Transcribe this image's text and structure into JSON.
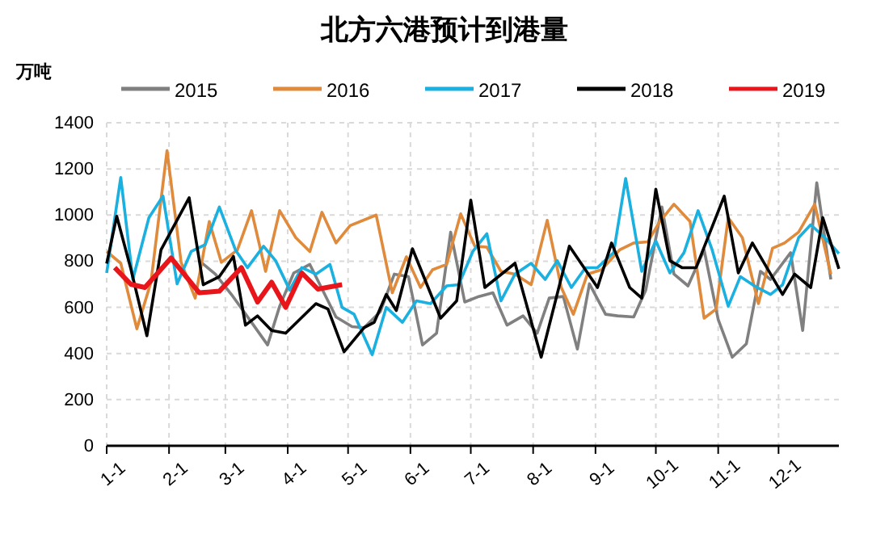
{
  "chart_data": {
    "type": "line",
    "title": "北方六港预计到港量",
    "ylabel": "万吨",
    "xlim": [
      "--01-01",
      "--12-31"
    ],
    "xticks": [
      {
        "value": "--01-01",
        "label": "1-1"
      },
      {
        "value": "--02-01",
        "label": "2-1"
      },
      {
        "value": "--03-01",
        "label": "3-1"
      },
      {
        "value": "--04-01",
        "label": "4-1"
      },
      {
        "value": "--05-01",
        "label": "5-1"
      },
      {
        "value": "--06-01",
        "label": "6-1"
      },
      {
        "value": "--07-01",
        "label": "7-1"
      },
      {
        "value": "--08-01",
        "label": "8-1"
      },
      {
        "value": "--09-01",
        "label": "9-1"
      },
      {
        "value": "--10-01",
        "label": "10-1"
      },
      {
        "value": "--11-01",
        "label": "11-1"
      },
      {
        "value": "--12-01",
        "label": "12-1"
      }
    ],
    "ylim": [
      0,
      1400
    ],
    "yticks": [
      0,
      200,
      400,
      600,
      800,
      1000,
      1200,
      1400
    ],
    "grid": true,
    "legend": "top",
    "line_style": "solid",
    "marker": "none",
    "series": [
      {
        "name": "2015",
        "color": "#808080",
        "x": [
          "--02-17",
          "--02-24",
          "--03-04",
          "--03-14",
          "--03-22",
          "--03-28",
          "--04-04",
          "--04-12",
          "--04-19",
          "--04-25",
          "--05-03",
          "--05-09",
          "--05-17",
          "--05-24",
          "--05-31",
          "--06-07",
          "--06-14",
          "--06-21",
          "--06-28",
          "--07-05",
          "--07-12",
          "--07-19",
          "--07-27",
          "--08-03",
          "--08-09",
          "--08-16",
          "--08-23",
          "--08-29",
          "--09-06",
          "--09-12",
          "--09-20",
          "--09-26",
          "--10-04",
          "--10-10",
          "--10-17",
          "--10-25",
          "--11-01",
          "--11-08",
          "--11-15",
          "--11-22",
          "--11-27",
          "--12-07",
          "--12-13",
          "--12-20",
          "--12-27"
        ],
        "values": [
          795,
          744,
          656,
          535,
          437,
          605,
          749,
          786,
          663,
          558,
          516,
          512,
          581,
          744,
          733,
          437,
          488,
          926,
          623,
          647,
          663,
          523,
          563,
          488,
          640,
          647,
          419,
          702,
          570,
          563,
          558,
          675,
          1035,
          744,
          693,
          849,
          547,
          384,
          442,
          756,
          721,
          837,
          500,
          1140,
          721
        ]
      },
      {
        "name": "2016",
        "color": "#e08a3c",
        "x": [
          "--01-01",
          "--01-08",
          "--01-16",
          "--01-23",
          "--01-31",
          "--02-07",
          "--02-14",
          "--02-21",
          "--02-27",
          "--03-07",
          "--03-14",
          "--03-21",
          "--03-28",
          "--04-05",
          "--04-12",
          "--04-18",
          "--04-25",
          "--05-02",
          "--05-15",
          "--05-23",
          "--05-30",
          "--06-06",
          "--06-12",
          "--06-19",
          "--06-26",
          "--07-03",
          "--07-09",
          "--07-16",
          "--07-23",
          "--07-31",
          "--08-08",
          "--08-15",
          "--08-21",
          "--08-28",
          "--09-04",
          "--09-13",
          "--09-20",
          "--09-27",
          "--10-03",
          "--10-10",
          "--10-18",
          "--10-25",
          "--10-31",
          "--11-06",
          "--11-13",
          "--11-21",
          "--11-28",
          "--12-04",
          "--12-11",
          "--12-19",
          "--12-27"
        ],
        "values": [
          842,
          791,
          507,
          709,
          1279,
          795,
          640,
          972,
          795,
          849,
          1019,
          756,
          1019,
          902,
          842,
          1012,
          879,
          954,
          1000,
          663,
          819,
          686,
          763,
          786,
          1005,
          865,
          861,
          756,
          744,
          698,
          977,
          686,
          570,
          744,
          763,
          849,
          879,
          884,
          972,
          1047,
          972,
          553,
          593,
          989,
          902,
          616,
          856,
          879,
          926,
          1047,
          744
        ]
      },
      {
        "name": "2017",
        "color": "#1ab0e0",
        "x": [
          "--01-01",
          "--01-08",
          "--01-14",
          "--01-22",
          "--01-29",
          "--02-05",
          "--02-12",
          "--02-19",
          "--02-26",
          "--03-06",
          "--03-12",
          "--03-20",
          "--03-26",
          "--04-02",
          "--04-08",
          "--04-15",
          "--04-22",
          "--04-28",
          "--05-04",
          "--05-13",
          "--05-20",
          "--05-28",
          "--06-04",
          "--06-11",
          "--06-19",
          "--06-25",
          "--07-02",
          "--07-09",
          "--07-16",
          "--07-23",
          "--07-31",
          "--08-07",
          "--08-13",
          "--08-20",
          "--08-27",
          "--09-02",
          "--09-10",
          "--09-16",
          "--09-24",
          "--10-01",
          "--10-08",
          "--10-15",
          "--10-22",
          "--10-29",
          "--11-06",
          "--11-12",
          "--11-19",
          "--11-27",
          "--12-03",
          "--12-11",
          "--12-17",
          "--12-24",
          "--12-31"
        ],
        "values": [
          749,
          1163,
          721,
          989,
          1082,
          702,
          842,
          872,
          1035,
          849,
          772,
          865,
          802,
          675,
          772,
          744,
          786,
          600,
          570,
          395,
          600,
          535,
          628,
          616,
          693,
          698,
          842,
          919,
          628,
          744,
          791,
          721,
          802,
          686,
          772,
          772,
          837,
          1158,
          756,
          888,
          749,
          837,
          1019,
          849,
          605,
          733,
          693,
          656,
          698,
          902,
          958,
          902,
          833
        ]
      },
      {
        "name": "2018",
        "color": "#000000",
        "x": [
          "--01-01",
          "--01-06",
          "--01-13",
          "--01-21",
          "--01-28",
          "--02-11",
          "--02-18",
          "--02-26",
          "--03-05",
          "--03-11",
          "--03-17",
          "--03-24",
          "--03-31",
          "--04-15",
          "--04-21",
          "--04-29",
          "--05-09",
          "--05-14",
          "--05-20",
          "--05-25",
          "--06-02",
          "--06-16",
          "--06-24",
          "--07-01",
          "--07-08",
          "--07-23",
          "--08-05",
          "--08-19",
          "--09-02",
          "--09-09",
          "--09-18",
          "--09-24",
          "--10-01",
          "--10-08",
          "--10-14",
          "--10-21",
          "--11-04",
          "--11-11",
          "--11-18",
          "--12-03",
          "--12-09",
          "--12-17",
          "--12-23",
          "--12-31"
        ],
        "values": [
          790,
          995,
          767,
          477,
          849,
          1075,
          698,
          733,
          821,
          523,
          563,
          500,
          488,
          616,
          593,
          407,
          512,
          535,
          656,
          586,
          854,
          553,
          628,
          1065,
          686,
          791,
          384,
          865,
          686,
          879,
          686,
          640,
          1112,
          802,
          772,
          772,
          1082,
          749,
          879,
          656,
          744,
          686,
          989,
          767
        ]
      },
      {
        "name": "2019",
        "color": "#e8151b",
        "x": [
          "--01-05",
          "--01-13",
          "--01-20",
          "--02-02",
          "--02-16",
          "--02-26",
          "--03-09",
          "--03-17",
          "--03-24",
          "--03-31",
          "--04-08",
          "--04-16",
          "--04-28"
        ],
        "values": [
          772,
          700,
          686,
          814,
          663,
          670,
          772,
          623,
          709,
          600,
          749,
          679,
          698
        ]
      }
    ]
  }
}
